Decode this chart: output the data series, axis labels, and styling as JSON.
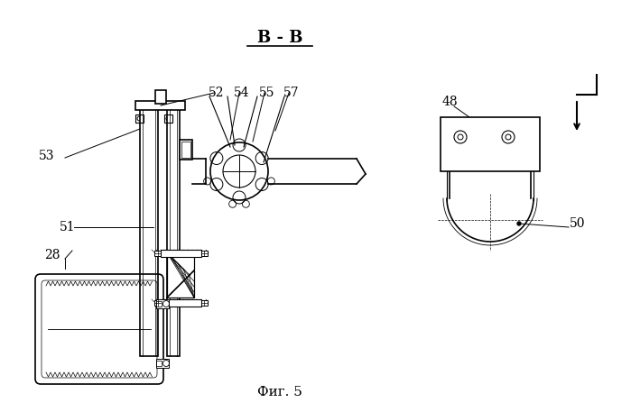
{
  "bg_color": "#ffffff",
  "line_color": "#000000",
  "fig_width": 6.99,
  "fig_height": 4.57,
  "title": "Фиг. 5",
  "section_label": "B - B"
}
